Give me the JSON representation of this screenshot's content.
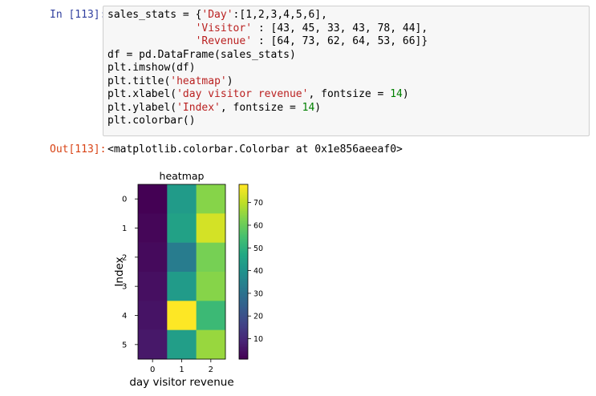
{
  "input_prompt": "In [113]:",
  "output_prompt": "Out[113]:",
  "code_lines": [
    [
      [
        "sales_stats = {",
        "#000000"
      ],
      [
        "'Day'",
        "#ba2121"
      ],
      [
        ":[1,2,3,4,5,6],",
        "#000000"
      ]
    ],
    [
      [
        "              ",
        "#000000"
      ],
      [
        "'Visitor'",
        "#ba2121"
      ],
      [
        " : [43, 45, 33, 43, 78, 44],",
        "#000000"
      ]
    ],
    [
      [
        "              ",
        "#000000"
      ],
      [
        "'Revenue'",
        "#ba2121"
      ],
      [
        " : [64, 73, 62, 64, 53, 66]}",
        "#000000"
      ]
    ],
    [
      [
        "df = pd.DataFrame(sales_stats)",
        "#000000"
      ]
    ],
    [
      [
        "plt.imshow(df)",
        "#000000"
      ]
    ],
    [
      [
        "plt.title(",
        "#000000"
      ],
      [
        "'heatmap'",
        "#ba2121"
      ],
      [
        ")",
        "#000000"
      ]
    ],
    [
      [
        "plt.xlabel(",
        "#000000"
      ],
      [
        "'day visitor revenue'",
        "#ba2121"
      ],
      [
        ", fontsize = ",
        "#000000"
      ],
      [
        "14",
        "#008000"
      ],
      [
        ")",
        "#000000"
      ]
    ],
    [
      [
        "plt.ylabel(",
        "#000000"
      ],
      [
        "'Index'",
        "#ba2121"
      ],
      [
        ", fontsize = ",
        "#000000"
      ],
      [
        "14",
        "#008000"
      ],
      [
        ")",
        "#000000"
      ]
    ],
    [
      [
        "plt.colorbar()",
        "#000000"
      ]
    ]
  ],
  "output_text": "<matplotlib.colorbar.Colorbar at 0x1e856aeeaf0>",
  "chart_data": {
    "type": "heatmap",
    "title": "heatmap",
    "xlabel": "day visitor revenue",
    "ylabel": "Index",
    "x_ticks": [
      "0",
      "1",
      "2"
    ],
    "y_ticks": [
      "0",
      "1",
      "2",
      "3",
      "4",
      "5"
    ],
    "values": [
      [
        1,
        43,
        64
      ],
      [
        2,
        45,
        73
      ],
      [
        3,
        33,
        62
      ],
      [
        4,
        43,
        64
      ],
      [
        5,
        78,
        53
      ],
      [
        6,
        44,
        66
      ]
    ],
    "colormap": "viridis",
    "vmin": 1,
    "vmax": 78,
    "colorbar_ticks": [
      10,
      20,
      30,
      40,
      50,
      60,
      70
    ]
  }
}
